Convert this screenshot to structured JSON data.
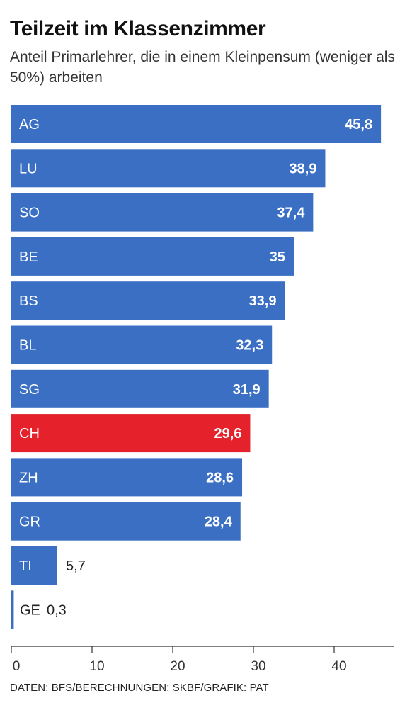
{
  "colors": {
    "bar": "#3a6fc4",
    "highlight": "#e5212b",
    "bar_label_inside": "#ffffff",
    "bar_label_outside": "#222222",
    "axis": "#333333"
  },
  "chart_data": {
    "type": "bar",
    "orientation": "horizontal",
    "title": "Teilzeit im Klassenzimmer",
    "subtitle": "Anteil Primarlehrer, die in einem Kleinpensum (weniger als 50%) arbeiten",
    "source": "DATEN: BFS/BERECHNUNGEN: SKBF/GRAFIK: PAT",
    "categories": [
      "AG",
      "LU",
      "SO",
      "BE",
      "BS",
      "BL",
      "SG",
      "CH",
      "ZH",
      "GR",
      "TI",
      "GE"
    ],
    "values": [
      45.8,
      38.9,
      37.4,
      35,
      33.9,
      32.3,
      31.9,
      29.6,
      28.6,
      28.4,
      5.7,
      0.3
    ],
    "value_labels": [
      "45,8",
      "38,9",
      "37,4",
      "35",
      "33,9",
      "32,3",
      "31,9",
      "29,6",
      "28,6",
      "28,4",
      "5,7",
      "0,3"
    ],
    "highlight": "CH",
    "xlim": [
      0,
      47
    ],
    "xticks": [
      0,
      10,
      20,
      30,
      40
    ],
    "xtick_labels": [
      "0",
      "10",
      "20",
      "30",
      "40"
    ],
    "xlabel": "",
    "ylabel": "",
    "grid": false,
    "legend": "none"
  }
}
